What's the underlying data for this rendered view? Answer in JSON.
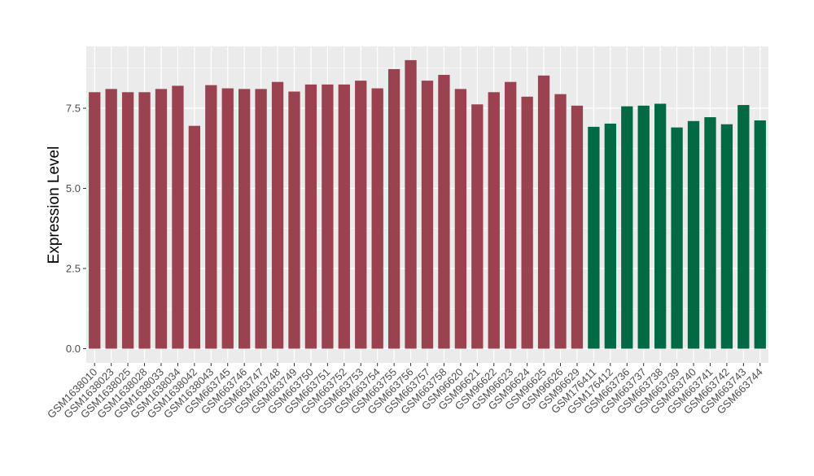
{
  "chart_data": {
    "type": "bar",
    "ylabel": "Expression Level",
    "xlabel": "",
    "ylim": [
      0,
      9.5
    ],
    "yticks": [
      0.0,
      2.5,
      5.0,
      7.5
    ],
    "ytick_labels": [
      "0.0",
      "2.5",
      "5.0",
      "7.5"
    ],
    "grid": true,
    "legend": "none",
    "colors": {
      "group1": "#9a4250",
      "group2": "#006a45",
      "panel": "#ebebeb",
      "gridline": "#ffffff"
    },
    "categories": [
      "GSM1638010",
      "GSM1638023",
      "GSM1638025",
      "GSM1638028",
      "GSM1638033",
      "GSM1638034",
      "GSM1638042",
      "GSM1638043",
      "GSM663745",
      "GSM663746",
      "GSM663747",
      "GSM663748",
      "GSM663749",
      "GSM663750",
      "GSM663751",
      "GSM663752",
      "GSM663753",
      "GSM663754",
      "GSM663755",
      "GSM663756",
      "GSM663757",
      "GSM663758",
      "GSM96620",
      "GSM96621",
      "GSM96622",
      "GSM96623",
      "GSM96624",
      "GSM96625",
      "GSM96626",
      "GSM96629",
      "GSM176411",
      "GSM176412",
      "GSM663736",
      "GSM663737",
      "GSM663738",
      "GSM663739",
      "GSM663740",
      "GSM663741",
      "GSM663742",
      "GSM663743",
      "GSM663744"
    ],
    "values": [
      8.0,
      8.1,
      8.0,
      8.0,
      8.1,
      8.2,
      6.95,
      8.22,
      8.12,
      8.1,
      8.1,
      8.32,
      8.02,
      8.24,
      8.24,
      8.24,
      8.36,
      8.12,
      8.72,
      9.0,
      8.36,
      8.54,
      8.1,
      7.62,
      8.0,
      8.32,
      7.86,
      8.52,
      7.94,
      7.58,
      6.92,
      7.02,
      7.56,
      7.58,
      7.64,
      6.9,
      7.1,
      7.22,
      7.0,
      7.6,
      7.12
    ],
    "groups": [
      1,
      1,
      1,
      1,
      1,
      1,
      1,
      1,
      1,
      1,
      1,
      1,
      1,
      1,
      1,
      1,
      1,
      1,
      1,
      1,
      1,
      1,
      1,
      1,
      1,
      1,
      1,
      1,
      1,
      1,
      2,
      2,
      2,
      2,
      2,
      2,
      2,
      2,
      2,
      2,
      2
    ]
  }
}
